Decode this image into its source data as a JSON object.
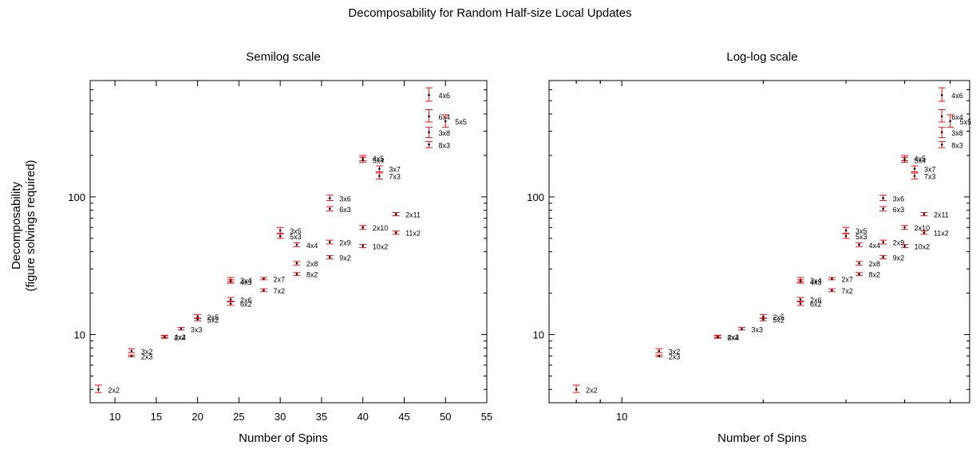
{
  "figure_title": "Decomposability for Random Half-size Local Updates",
  "colors": {
    "markers": "#e8141a",
    "axes": "#000000",
    "labels": "#000000"
  },
  "chart_data": [
    {
      "type": "scatter",
      "title": "Semilog scale",
      "xlabel": "Number of Spins",
      "ylabel": "Decomposability\n(figure solvings required)",
      "xscale": "linear",
      "yscale": "log",
      "xlim": [
        7,
        55
      ],
      "ylim": [
        3.2,
        700
      ],
      "xticks": [
        "10",
        "15",
        "20",
        "25",
        "30",
        "35",
        "40",
        "45",
        "50",
        "55"
      ],
      "yticks": [
        "10",
        "100"
      ],
      "grid": false,
      "points": [
        {
          "label": "2x2",
          "x": 8,
          "y": 4.0,
          "yerr_low": 3.8,
          "yerr_high": 4.3
        },
        {
          "label": "3x2",
          "x": 12,
          "y": 7.6,
          "yerr_low": 7.4,
          "yerr_high": 7.9
        },
        {
          "label": "2x3",
          "x": 12,
          "y": 7.0,
          "yerr_low": 6.9,
          "yerr_high": 7.1
        },
        {
          "label": "4x2",
          "x": 16,
          "y": 9.7,
          "yerr_low": 9.5,
          "yerr_high": 9.9
        },
        {
          "label": "2x4",
          "x": 16,
          "y": 9.6,
          "yerr_low": 9.4,
          "yerr_high": 9.8
        },
        {
          "label": "3x3",
          "x": 18,
          "y": 11.0,
          "yerr_low": 10.8,
          "yerr_high": 11.3
        },
        {
          "label": "2x5",
          "x": 20,
          "y": 13.5,
          "yerr_low": 13.1,
          "yerr_high": 14.0
        },
        {
          "label": "5x2",
          "x": 20,
          "y": 12.9,
          "yerr_low": 12.6,
          "yerr_high": 13.2
        },
        {
          "label": "2x6",
          "x": 24,
          "y": 18.0,
          "yerr_low": 17.5,
          "yerr_high": 18.6
        },
        {
          "label": "6x2",
          "x": 24,
          "y": 16.8,
          "yerr_low": 16.3,
          "yerr_high": 17.3
        },
        {
          "label": "3x4",
          "x": 24,
          "y": 25.0,
          "yerr_low": 24.2,
          "yerr_high": 26.0
        },
        {
          "label": "4x3",
          "x": 24,
          "y": 24.3,
          "yerr_low": 23.6,
          "yerr_high": 25.0
        },
        {
          "label": "2x7",
          "x": 28,
          "y": 25.5,
          "yerr_low": 25.0,
          "yerr_high": 26.0
        },
        {
          "label": "7x2",
          "x": 28,
          "y": 21.0,
          "yerr_low": 20.5,
          "yerr_high": 21.5
        },
        {
          "label": "3x5",
          "x": 30,
          "y": 57.0,
          "yerr_low": 54.5,
          "yerr_high": 60.0
        },
        {
          "label": "5x3",
          "x": 30,
          "y": 52.0,
          "yerr_low": 50.0,
          "yerr_high": 54.0
        },
        {
          "label": "4x4",
          "x": 32,
          "y": 45.0,
          "yerr_low": 43.5,
          "yerr_high": 46.5
        },
        {
          "label": "2x8",
          "x": 32,
          "y": 33.0,
          "yerr_low": 32.0,
          "yerr_high": 34.0
        },
        {
          "label": "8x2",
          "x": 32,
          "y": 27.5,
          "yerr_low": 26.8,
          "yerr_high": 28.2
        },
        {
          "label": "3x6",
          "x": 36,
          "y": 98.0,
          "yerr_low": 94.0,
          "yerr_high": 103.0
        },
        {
          "label": "6x3",
          "x": 36,
          "y": 82.0,
          "yerr_low": 79.0,
          "yerr_high": 85.0
        },
        {
          "label": "2x9",
          "x": 36,
          "y": 47.0,
          "yerr_low": 45.5,
          "yerr_high": 48.5
        },
        {
          "label": "9x2",
          "x": 36,
          "y": 36.5,
          "yerr_low": 35.5,
          "yerr_high": 37.5
        },
        {
          "label": "4x5",
          "x": 40,
          "y": 192.0,
          "yerr_low": 183.0,
          "yerr_high": 200.0
        },
        {
          "label": "5x4",
          "x": 40,
          "y": 186.0,
          "yerr_low": 178.0,
          "yerr_high": 194.0
        },
        {
          "label": "2x10",
          "x": 40,
          "y": 60.0,
          "yerr_low": 58.0,
          "yerr_high": 62.0
        },
        {
          "label": "10x2",
          "x": 40,
          "y": 44.0,
          "yerr_low": 42.8,
          "yerr_high": 45.2
        },
        {
          "label": "3x7",
          "x": 42,
          "y": 160.0,
          "yerr_low": 152.0,
          "yerr_high": 168.0
        },
        {
          "label": "7x3",
          "x": 42,
          "y": 142.0,
          "yerr_low": 135.0,
          "yerr_high": 149.0
        },
        {
          "label": "2x11",
          "x": 44,
          "y": 75.0,
          "yerr_low": 73.0,
          "yerr_high": 77.0
        },
        {
          "label": "11x2",
          "x": 44,
          "y": 55.0,
          "yerr_low": 53.5,
          "yerr_high": 56.5
        },
        {
          "label": "4x6",
          "x": 48,
          "y": 550.0,
          "yerr_low": 495.0,
          "yerr_high": 620.0
        },
        {
          "label": "6x4",
          "x": 48,
          "y": 385.0,
          "yerr_low": 350.0,
          "yerr_high": 430.0
        },
        {
          "label": "3x8",
          "x": 48,
          "y": 295.0,
          "yerr_low": 270.0,
          "yerr_high": 320.0
        },
        {
          "label": "8x3",
          "x": 48,
          "y": 240.0,
          "yerr_low": 228.0,
          "yerr_high": 252.0
        },
        {
          "label": "5x5",
          "x": 50,
          "y": 355.0,
          "yerr_low": 320.0,
          "yerr_high": 395.0
        }
      ]
    },
    {
      "type": "scatter",
      "title": "Log-log scale",
      "xlabel": "Number of Spins",
      "ylabel": "",
      "xscale": "log",
      "yscale": "log",
      "xlim": [
        7,
        55
      ],
      "ylim": [
        3.2,
        700
      ],
      "xticks": [
        "10"
      ],
      "yticks": [
        "10",
        "100"
      ],
      "grid": false,
      "points_same_as": "Semilog scale"
    }
  ]
}
